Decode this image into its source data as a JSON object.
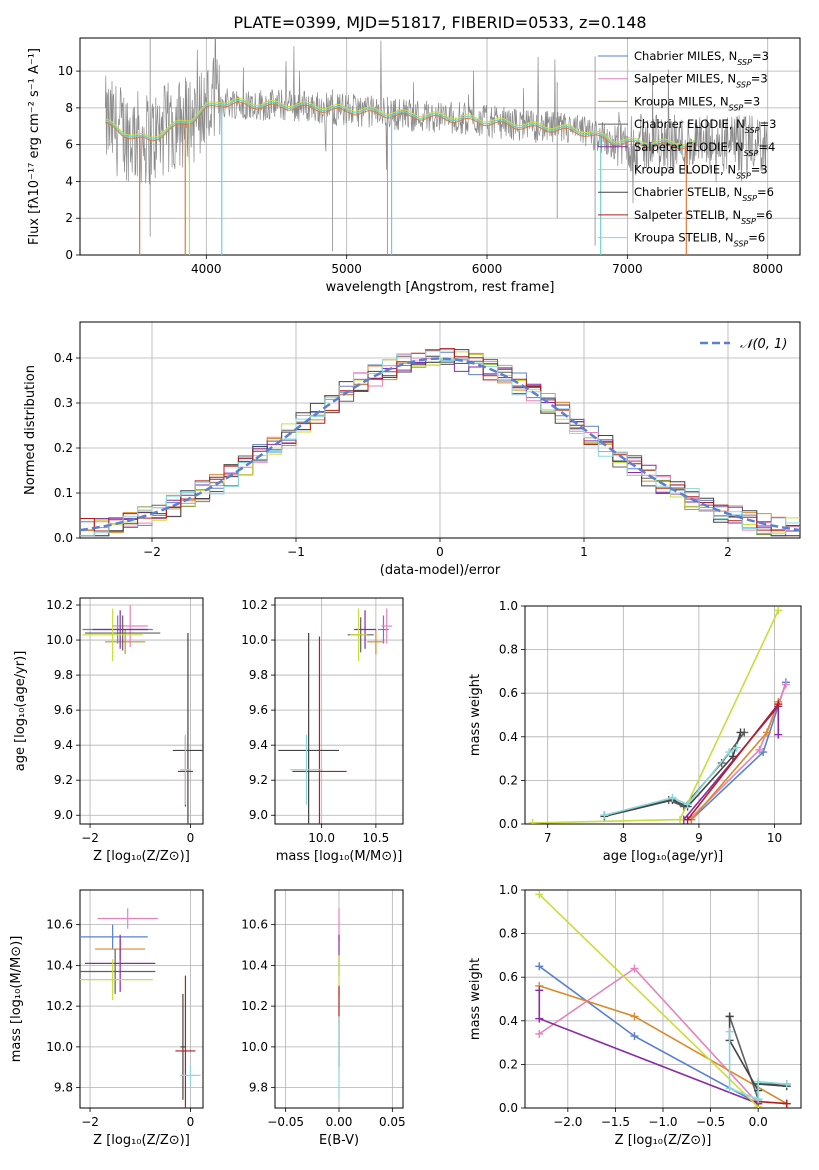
{
  "figure": {
    "title": "PLATE=0399, MJD=51817, FIBERID=0533, z=0.148"
  },
  "colors": {
    "chabrier_miles": "#5b80d1",
    "salpeter_miles": "#e683bd",
    "kroupa_miles": "#d98a2c",
    "chabrier_elodie": "#606060",
    "salpeter_elodie": "#8a2aa6",
    "kroupa_elodie": "#c9dd3b",
    "chabrier_stelib": "#444444",
    "salpeter_stelib": "#b81c1c",
    "kroupa_stelib": "#8ad8dc",
    "spectrum_gray": "#8a8a8a",
    "model_cyan": "#6cd0d4",
    "model_orange": "#e07a3a",
    "normal_dashed": "#5b80d1",
    "grid": "#b0b0b0"
  },
  "legend_models": [
    {
      "label": "Chabrier MILES, N",
      "sub": "SSP",
      "suffix": "=3",
      "color_key": "chabrier_miles"
    },
    {
      "label": "Salpeter MILES, N",
      "sub": "SSP",
      "suffix": "=3",
      "color_key": "salpeter_miles"
    },
    {
      "label": "Kroupa MILES, N",
      "sub": "SSP",
      "suffix": "=3",
      "color_key": "kroupa_miles"
    },
    {
      "label": "Chabrier ELODIE, N",
      "sub": "SSP",
      "suffix": "=3",
      "color_key": "chabrier_elodie"
    },
    {
      "label": "Salpeter ELODIE, N",
      "sub": "SSP",
      "suffix": "=4",
      "color_key": "salpeter_elodie"
    },
    {
      "label": "Kroupa ELODIE, N",
      "sub": "SSP",
      "suffix": "=3",
      "color_key": "kroupa_elodie"
    },
    {
      "label": "Chabrier STELIB, N",
      "sub": "SSP",
      "suffix": "=6",
      "color_key": "chabrier_stelib"
    },
    {
      "label": "Salpeter STELIB, N",
      "sub": "SSP",
      "suffix": "=6",
      "color_key": "salpeter_stelib"
    },
    {
      "label": "Kroupa STELIB, N",
      "sub": "SSP",
      "suffix": "=6",
      "color_key": "kroupa_stelib"
    }
  ],
  "chart_data": [
    {
      "id": "spectrum",
      "type": "line",
      "xlabel": "wavelength [Angstrom, rest frame]",
      "ylabel": "Flux [fλ10⁻¹⁷ erg cm⁻² s⁻¹ A⁻¹]",
      "xlim": [
        3100,
        8230
      ],
      "ylim": [
        0,
        11.8
      ],
      "xticks": [
        4000,
        5000,
        6000,
        7000,
        8000
      ],
      "yticks": [
        0,
        2,
        4,
        6,
        8,
        10
      ],
      "continuum": {
        "x": [
          3280,
          3400,
          3500,
          3600,
          3700,
          3800,
          3900,
          4000,
          4100,
          4200,
          4300,
          4500,
          4700,
          4900,
          5100,
          5300,
          5500,
          5700,
          5900,
          6100,
          6300,
          6500,
          6700,
          6900,
          7100,
          7300,
          7500
        ],
        "y": [
          7.2,
          6.7,
          6.4,
          6.3,
          6.7,
          7.1,
          7.4,
          8.0,
          8.3,
          8.3,
          8.2,
          8.15,
          8.1,
          7.95,
          7.85,
          7.7,
          7.6,
          7.5,
          7.35,
          7.2,
          7.0,
          6.9,
          6.7,
          6.2,
          6.1,
          6.05,
          6.0
        ]
      },
      "spectrum_x_range": [
        3280,
        8000
      ],
      "model_x_range": [
        3280,
        7480
      ]
    },
    {
      "id": "residuals",
      "type": "line",
      "xlabel": "(data-model)/error",
      "ylabel": "Normed distribution",
      "xlim": [
        -2.5,
        2.5
      ],
      "ylim": [
        0,
        0.48
      ],
      "xticks": [
        -2,
        -1,
        0,
        1,
        2
      ],
      "yticks": [
        0.0,
        0.1,
        0.2,
        0.3,
        0.4
      ],
      "legend": "𝒩(0, 1)",
      "bin_width": 0.1
    },
    {
      "id": "age_vs_Z",
      "type": "scatter",
      "xlabel": "Z [log₁₀(Z/Z⊙)]",
      "ylabel": "age  [log₁₀(age/yr)]",
      "xlim": [
        -2.2,
        0.25
      ],
      "ylim": [
        8.95,
        10.24
      ],
      "xticks": [
        -2,
        0
      ],
      "yticks": [
        9.0,
        9.2,
        9.4,
        9.6,
        9.8,
        10.0,
        10.2
      ],
      "points": [
        {
          "x": -1.45,
          "xerr": 0.7,
          "y": 10.06,
          "yerr": 0.08,
          "c": "chabrier_miles"
        },
        {
          "x": -1.2,
          "xerr": 0.35,
          "y": 10.08,
          "yerr": 0.12,
          "c": "salpeter_miles"
        },
        {
          "x": -1.3,
          "xerr": 0.4,
          "y": 9.99,
          "yerr": 0.07,
          "c": "kroupa_miles"
        },
        {
          "x": -1.35,
          "xerr": 0.75,
          "y": 10.04,
          "yerr": 0.1,
          "c": "chabrier_elodie"
        },
        {
          "x": -1.4,
          "xerr": 0.55,
          "y": 10.06,
          "yerr": 0.11,
          "c": "salpeter_elodie"
        },
        {
          "x": -1.55,
          "xerr": 0.6,
          "y": 10.03,
          "yerr": 0.15,
          "c": "kroupa_elodie"
        },
        {
          "x": -0.05,
          "xerr": 0.3,
          "y": 9.37,
          "yerr": 0.67,
          "c": "chabrier_stelib"
        },
        {
          "x": -0.1,
          "xerr": 0.15,
          "y": 9.25,
          "yerr": 0.2,
          "c": "salpeter_stelib"
        },
        {
          "x": -0.1,
          "xerr": 0.1,
          "y": 9.26,
          "yerr": 0.2,
          "c": "kroupa_stelib"
        }
      ]
    },
    {
      "id": "age_vs_mass",
      "type": "scatter",
      "xlabel": "mass [log₁₀(M/M⊙)]",
      "ylabel": "",
      "xlim": [
        9.57,
        10.75
      ],
      "ylim": [
        8.95,
        10.24
      ],
      "xticks": [
        10.0,
        10.5
      ],
      "yticks": [
        9.0,
        9.2,
        9.4,
        9.6,
        9.8,
        10.0,
        10.2
      ],
      "points": [
        {
          "x": 10.57,
          "xerr": 0.05,
          "y": 10.06,
          "yerr": 0.08,
          "c": "chabrier_miles"
        },
        {
          "x": 10.6,
          "xerr": 0.05,
          "y": 10.08,
          "yerr": 0.1,
          "c": "salpeter_miles"
        },
        {
          "x": 10.5,
          "xerr": 0.08,
          "y": 9.99,
          "yerr": 0.07,
          "c": "kroupa_miles"
        },
        {
          "x": 10.36,
          "xerr": 0.12,
          "y": 10.03,
          "yerr": 0.1,
          "c": "chabrier_elodie"
        },
        {
          "x": 10.4,
          "xerr": 0.1,
          "y": 10.06,
          "yerr": 0.11,
          "c": "salpeter_elodie"
        },
        {
          "x": 10.34,
          "xerr": 0.08,
          "y": 10.03,
          "yerr": 0.15,
          "c": "kroupa_elodie"
        },
        {
          "x": 9.88,
          "xerr": 0.28,
          "y": 9.37,
          "yerr": 0.67,
          "c": "chabrier_stelib"
        },
        {
          "x": 9.98,
          "xerr": 0.25,
          "y": 9.25,
          "yerr": 0.77,
          "c": "salpeter_stelib"
        },
        {
          "x": 9.86,
          "xerr": 0.15,
          "y": 9.26,
          "yerr": 0.2,
          "c": "kroupa_stelib"
        }
      ]
    },
    {
      "id": "massweight_vs_age",
      "type": "line",
      "xlabel": "age  [log₁₀(age/yr)]",
      "ylabel": "mass weight",
      "xlim": [
        6.7,
        10.35
      ],
      "ylim": [
        0,
        1.0
      ],
      "xticks": [
        7,
        8,
        9,
        10
      ],
      "yticks": [
        0.0,
        0.2,
        0.4,
        0.6,
        0.8,
        1.0
      ],
      "series": [
        {
          "c": "chabrier_miles",
          "x": [
            8.9,
            9.85,
            10.15
          ],
          "y": [
            0.02,
            0.33,
            0.65
          ]
        },
        {
          "c": "salpeter_miles",
          "x": [
            8.9,
            9.8,
            10.15
          ],
          "y": [
            0.03,
            0.34,
            0.64
          ]
        },
        {
          "c": "kroupa_miles",
          "x": [
            8.9,
            9.9,
            10.05
          ],
          "y": [
            0.02,
            0.42,
            0.56
          ]
        },
        {
          "c": "chabrier_elodie",
          "x": [
            7.75,
            8.6,
            8.8,
            9.3,
            9.6
          ],
          "y": [
            0.04,
            0.11,
            0.08,
            0.28,
            0.42
          ]
        },
        {
          "c": "salpeter_elodie",
          "x": [
            8.8,
            10.05,
            10.05
          ],
          "y": [
            0.02,
            0.54,
            0.41
          ]
        },
        {
          "c": "kroupa_elodie",
          "x": [
            6.8,
            8.75,
            10.05
          ],
          "y": [
            0.005,
            0.02,
            0.98
          ]
        },
        {
          "c": "chabrier_stelib",
          "x": [
            7.75,
            8.65,
            8.85,
            9.45,
            9.55
          ],
          "y": [
            0.035,
            0.11,
            0.08,
            0.31,
            0.42
          ]
        },
        {
          "c": "salpeter_stelib",
          "x": [
            8.85,
            10.05
          ],
          "y": [
            0.02,
            0.55
          ]
        },
        {
          "c": "kroupa_stelib",
          "x": [
            7.75,
            8.65,
            8.85,
            9.4,
            9.5
          ],
          "y": [
            0.04,
            0.12,
            0.09,
            0.33,
            0.35
          ]
        }
      ]
    },
    {
      "id": "mass_vs_Z",
      "type": "scatter",
      "xlabel": "Z [log₁₀(Z/Z⊙)]",
      "ylabel": "mass [log₁₀(M/M⊙)]",
      "xlim": [
        -2.2,
        0.25
      ],
      "ylim": [
        9.7,
        10.77
      ],
      "xticks": [
        -2,
        0
      ],
      "yticks": [
        9.8,
        10.0,
        10.2,
        10.4,
        10.6
      ],
      "points": [
        {
          "x": -1.55,
          "xerr": 0.7,
          "y": 10.54,
          "yerr": 0.06,
          "c": "chabrier_miles"
        },
        {
          "x": -1.25,
          "xerr": 0.6,
          "y": 10.63,
          "yerr": 0.05,
          "c": "salpeter_miles"
        },
        {
          "x": -1.4,
          "xerr": 0.5,
          "y": 10.48,
          "yerr": 0.05,
          "c": "kroupa_miles"
        },
        {
          "x": -1.5,
          "xerr": 0.8,
          "y": 10.37,
          "yerr": 0.11,
          "c": "chabrier_elodie"
        },
        {
          "x": -1.4,
          "xerr": 0.7,
          "y": 10.41,
          "yerr": 0.14,
          "c": "salpeter_elodie"
        },
        {
          "x": -1.55,
          "xerr": 0.8,
          "y": 10.33,
          "yerr": 0.1,
          "c": "kroupa_elodie"
        },
        {
          "x": -0.15,
          "xerr": 0.05,
          "y": 10.0,
          "yerr": 0.26,
          "c": "chabrier_stelib"
        },
        {
          "x": -0.1,
          "xerr": 0.2,
          "y": 9.98,
          "yerr": 0.37,
          "c": "salpeter_stelib"
        },
        {
          "x": 0.0,
          "xerr": 0.2,
          "y": 9.86,
          "yerr": 0.05,
          "c": "kroupa_stelib"
        }
      ]
    },
    {
      "id": "mass_vs_ebv",
      "type": "scatter",
      "xlabel": "E(B-V)",
      "ylabel": "",
      "xlim": [
        -0.06,
        0.06
      ],
      "ylim": [
        9.7,
        10.77
      ],
      "xticks": [
        -0.05,
        0.0,
        0.05
      ],
      "yticks": [
        9.8,
        10.0,
        10.2,
        10.4,
        10.6
      ],
      "points": [
        {
          "x": 0,
          "xerr": 0,
          "y": 10.6,
          "yerr": 0.08,
          "c": "salpeter_miles"
        },
        {
          "x": 0,
          "xerr": 0,
          "y": 10.45,
          "yerr": 0.1,
          "c": "salpeter_elodie"
        },
        {
          "x": 0,
          "xerr": 0,
          "y": 10.35,
          "yerr": 0.1,
          "c": "kroupa_elodie"
        },
        {
          "x": 0,
          "xerr": 0,
          "y": 10.1,
          "yerr": 0.2,
          "c": "salpeter_stelib"
        },
        {
          "x": 0,
          "xerr": 0,
          "y": 9.95,
          "yerr": 0.2,
          "c": "kroupa_stelib"
        }
      ]
    },
    {
      "id": "massweight_vs_Z",
      "type": "line",
      "xlabel": "Z [log₁₀(Z/Z⊙)]",
      "ylabel": "mass weight",
      "xlim": [
        -2.45,
        0.45
      ],
      "ylim": [
        0,
        1.0
      ],
      "xticks": [
        -2.0,
        -1.5,
        -1.0,
        -0.5,
        0.0
      ],
      "yticks": [
        0.0,
        0.2,
        0.4,
        0.6,
        0.8,
        1.0
      ],
      "series": [
        {
          "c": "chabrier_miles",
          "x": [
            -2.3,
            -1.3,
            0.0
          ],
          "y": [
            0.65,
            0.33,
            0.02
          ]
        },
        {
          "c": "salpeter_miles",
          "x": [
            -2.3,
            -1.3,
            0.0
          ],
          "y": [
            0.34,
            0.64,
            0.02
          ]
        },
        {
          "c": "kroupa_miles",
          "x": [
            -2.3,
            -1.3,
            0.3
          ],
          "y": [
            0.56,
            0.42,
            0.02
          ]
        },
        {
          "c": "chabrier_elodie",
          "x": [
            -0.3,
            0.0,
            0.0,
            0.3
          ],
          "y": [
            0.42,
            0.04,
            0.11,
            0.11
          ]
        },
        {
          "c": "salpeter_elodie",
          "x": [
            -2.3,
            -2.3,
            0.0
          ],
          "y": [
            0.54,
            0.41,
            0.02
          ]
        },
        {
          "c": "kroupa_elodie",
          "x": [
            -2.3,
            0.0
          ],
          "y": [
            0.98,
            0.005
          ]
        },
        {
          "c": "chabrier_stelib",
          "x": [
            -0.3,
            -0.3,
            0.0,
            0.0,
            0.3
          ],
          "y": [
            0.42,
            0.31,
            0.08,
            0.11,
            0.1
          ]
        },
        {
          "c": "salpeter_stelib",
          "x": [
            0.0,
            0.3
          ],
          "y": [
            0.03,
            0.02
          ]
        },
        {
          "c": "kroupa_stelib",
          "x": [
            -0.3,
            -0.3,
            0.0,
            0.0,
            0.3
          ],
          "y": [
            0.35,
            0.09,
            0.04,
            0.12,
            0.11
          ]
        }
      ]
    }
  ]
}
